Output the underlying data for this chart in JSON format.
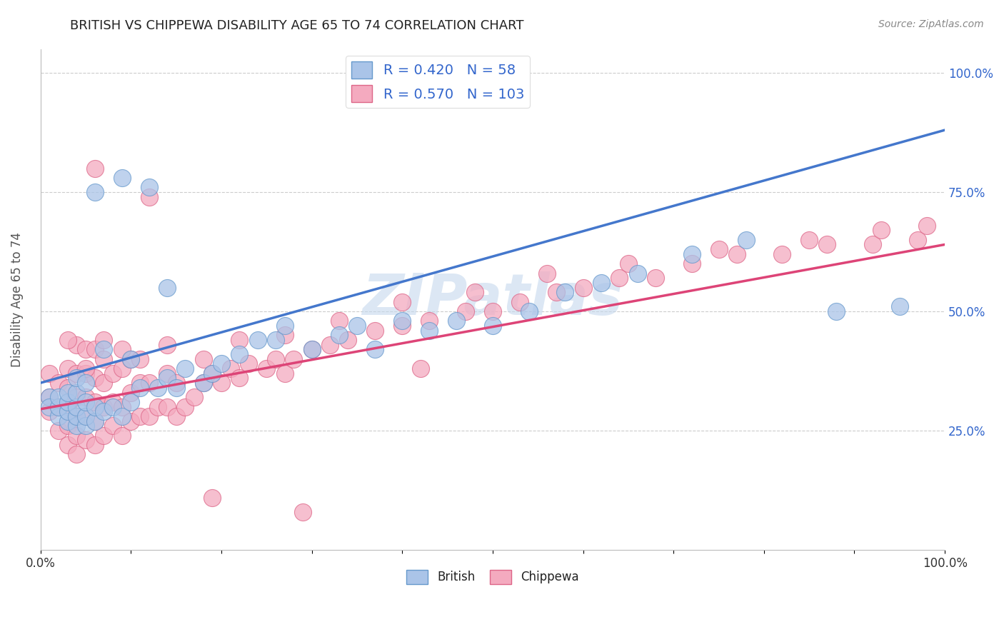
{
  "title": "BRITISH VS CHIPPEWA DISABILITY AGE 65 TO 74 CORRELATION CHART",
  "source_text": "Source: ZipAtlas.com",
  "ylabel": "Disability Age 65 to 74",
  "xlim": [
    0.0,
    1.0
  ],
  "ylim": [
    0.0,
    1.05
  ],
  "british_R": 0.42,
  "british_N": 58,
  "chippewa_R": 0.57,
  "chippewa_N": 103,
  "british_color": "#aac4e8",
  "chippewa_color": "#f4aabf",
  "british_edge_color": "#6699cc",
  "chippewa_edge_color": "#dd6688",
  "british_line_color": "#4477cc",
  "chippewa_line_color": "#dd4477",
  "legend_text_color": "#3366cc",
  "watermark_color": "#c5d8ed",
  "background_color": "#ffffff",
  "grid_color": "#cccccc",
  "british_line_x0": 0.0,
  "british_line_y0": 0.35,
  "british_line_x1": 1.0,
  "british_line_y1": 0.88,
  "chippewa_line_x0": 0.0,
  "chippewa_line_y0": 0.295,
  "chippewa_line_x1": 1.0,
  "chippewa_line_y1": 0.64,
  "british_x": [
    0.01,
    0.01,
    0.02,
    0.02,
    0.02,
    0.03,
    0.03,
    0.03,
    0.03,
    0.04,
    0.04,
    0.04,
    0.04,
    0.04,
    0.05,
    0.05,
    0.05,
    0.05,
    0.06,
    0.06,
    0.06,
    0.07,
    0.07,
    0.08,
    0.09,
    0.09,
    0.1,
    0.1,
    0.11,
    0.12,
    0.13,
    0.14,
    0.14,
    0.15,
    0.16,
    0.18,
    0.19,
    0.2,
    0.22,
    0.24,
    0.26,
    0.27,
    0.3,
    0.33,
    0.35,
    0.37,
    0.4,
    0.43,
    0.46,
    0.5,
    0.54,
    0.58,
    0.62,
    0.66,
    0.72,
    0.78,
    0.88,
    0.95
  ],
  "british_y": [
    0.32,
    0.3,
    0.28,
    0.3,
    0.32,
    0.27,
    0.29,
    0.31,
    0.33,
    0.26,
    0.28,
    0.3,
    0.33,
    0.36,
    0.26,
    0.28,
    0.31,
    0.35,
    0.27,
    0.3,
    0.75,
    0.29,
    0.42,
    0.3,
    0.28,
    0.78,
    0.31,
    0.4,
    0.34,
    0.76,
    0.34,
    0.36,
    0.55,
    0.34,
    0.38,
    0.35,
    0.37,
    0.39,
    0.41,
    0.44,
    0.44,
    0.47,
    0.42,
    0.45,
    0.47,
    0.42,
    0.48,
    0.46,
    0.48,
    0.47,
    0.5,
    0.54,
    0.56,
    0.58,
    0.62,
    0.65,
    0.5,
    0.51
  ],
  "chippewa_x": [
    0.01,
    0.01,
    0.01,
    0.02,
    0.02,
    0.02,
    0.03,
    0.03,
    0.03,
    0.03,
    0.03,
    0.04,
    0.04,
    0.04,
    0.04,
    0.04,
    0.04,
    0.05,
    0.05,
    0.05,
    0.05,
    0.05,
    0.06,
    0.06,
    0.06,
    0.06,
    0.06,
    0.07,
    0.07,
    0.07,
    0.07,
    0.08,
    0.08,
    0.08,
    0.09,
    0.09,
    0.09,
    0.1,
    0.1,
    0.1,
    0.11,
    0.11,
    0.12,
    0.12,
    0.13,
    0.14,
    0.14,
    0.15,
    0.15,
    0.16,
    0.17,
    0.18,
    0.19,
    0.2,
    0.21,
    0.22,
    0.23,
    0.25,
    0.26,
    0.27,
    0.28,
    0.3,
    0.32,
    0.34,
    0.37,
    0.4,
    0.43,
    0.47,
    0.5,
    0.53,
    0.57,
    0.6,
    0.64,
    0.68,
    0.72,
    0.77,
    0.82,
    0.87,
    0.92,
    0.97,
    0.03,
    0.05,
    0.07,
    0.09,
    0.11,
    0.14,
    0.18,
    0.22,
    0.27,
    0.33,
    0.4,
    0.48,
    0.56,
    0.65,
    0.75,
    0.85,
    0.93,
    0.98,
    0.06,
    0.12,
    0.19,
    0.29,
    0.42
  ],
  "chippewa_y": [
    0.29,
    0.32,
    0.37,
    0.25,
    0.3,
    0.35,
    0.22,
    0.26,
    0.3,
    0.34,
    0.38,
    0.2,
    0.24,
    0.28,
    0.32,
    0.37,
    0.43,
    0.23,
    0.28,
    0.32,
    0.37,
    0.42,
    0.22,
    0.27,
    0.31,
    0.36,
    0.42,
    0.24,
    0.3,
    0.35,
    0.4,
    0.26,
    0.31,
    0.37,
    0.24,
    0.3,
    0.38,
    0.27,
    0.33,
    0.4,
    0.28,
    0.35,
    0.28,
    0.35,
    0.3,
    0.3,
    0.37,
    0.28,
    0.35,
    0.3,
    0.32,
    0.35,
    0.37,
    0.35,
    0.38,
    0.36,
    0.39,
    0.38,
    0.4,
    0.37,
    0.4,
    0.42,
    0.43,
    0.44,
    0.46,
    0.47,
    0.48,
    0.5,
    0.5,
    0.52,
    0.54,
    0.55,
    0.57,
    0.57,
    0.6,
    0.62,
    0.62,
    0.64,
    0.64,
    0.65,
    0.44,
    0.38,
    0.44,
    0.42,
    0.4,
    0.43,
    0.4,
    0.44,
    0.45,
    0.48,
    0.52,
    0.54,
    0.58,
    0.6,
    0.63,
    0.65,
    0.67,
    0.68,
    0.8,
    0.74,
    0.11,
    0.08,
    0.38
  ]
}
